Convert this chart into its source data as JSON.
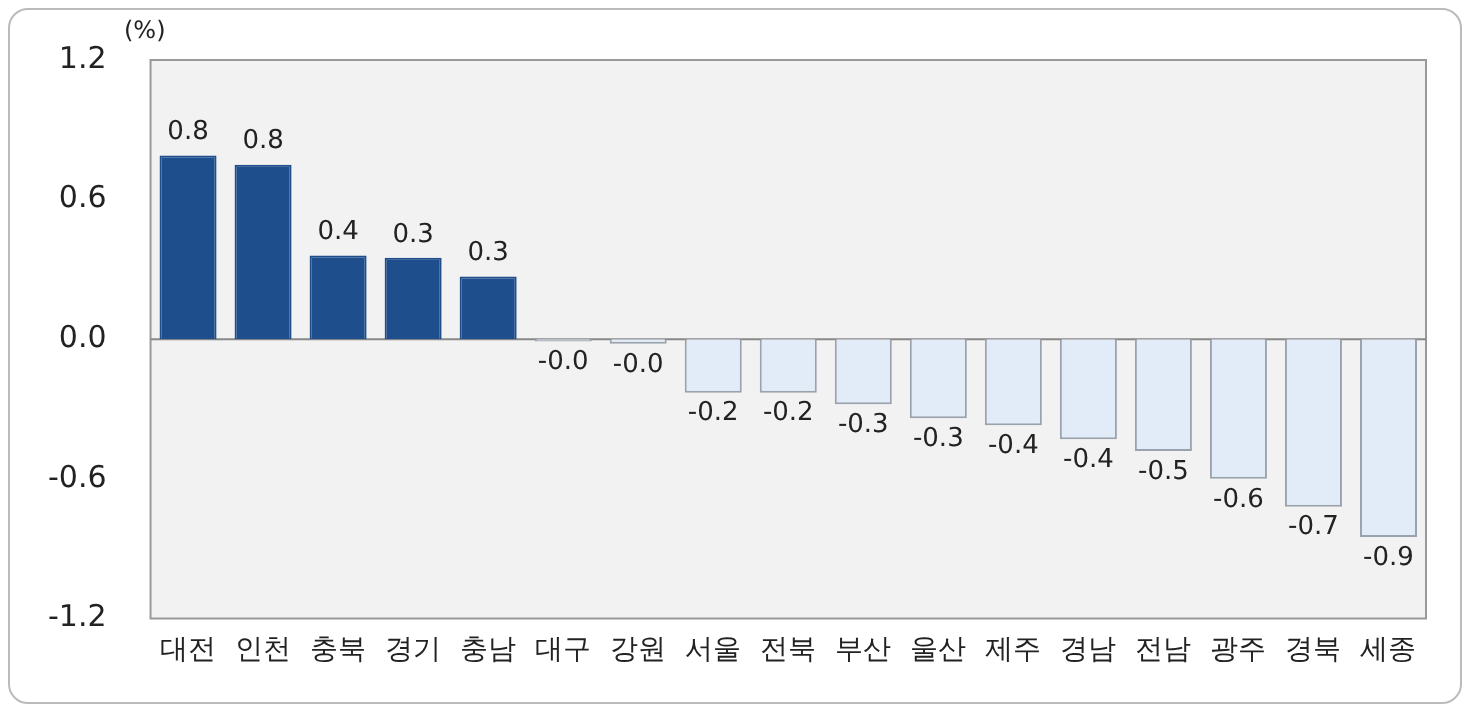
{
  "chart_data": {
    "type": "bar",
    "ylabel": "(%)",
    "categories": [
      "대전",
      "인천",
      "충북",
      "경기",
      "충남",
      "대구",
      "강원",
      "서울",
      "전북",
      "부산",
      "울산",
      "제주",
      "경남",
      "전남",
      "광주",
      "경북",
      "세종"
    ],
    "values": [
      0.79,
      0.75,
      0.36,
      0.35,
      0.27,
      -0.01,
      -0.02,
      -0.23,
      -0.23,
      -0.28,
      -0.34,
      -0.37,
      -0.43,
      -0.48,
      -0.6,
      -0.72,
      -0.85
    ],
    "value_labels": [
      "0.8",
      "0.8",
      "0.4",
      "0.3",
      "0.3",
      "-0.0",
      "-0.0",
      "-0.2",
      "-0.2",
      "-0.3",
      "-0.3",
      "-0.4",
      "-0.4",
      "-0.5",
      "-0.6",
      "-0.7",
      "-0.9"
    ],
    "colors": [
      "#1f4e8c",
      "#1f4e8c",
      "#1f4e8c",
      "#1f4e8c",
      "#1f4e8c",
      "#e2ecf8",
      "#e2ecf8",
      "#e2ecf8",
      "#e2ecf8",
      "#e2ecf8",
      "#e2ecf8",
      "#e2ecf8",
      "#e2ecf8",
      "#e2ecf8",
      "#e2ecf8",
      "#e2ecf8",
      "#e2ecf8"
    ],
    "ylim": [
      -1.2,
      1.2
    ],
    "yticks": [
      {
        "value": -1.2,
        "label": "-1.2"
      },
      {
        "value": -0.6,
        "label": "-0.6"
      },
      {
        "value": 0,
        "label": "0.0"
      },
      {
        "value": 0.6,
        "label": "0.6"
      },
      {
        "value": 1.2,
        "label": "1.2"
      }
    ],
    "legend": false
  }
}
